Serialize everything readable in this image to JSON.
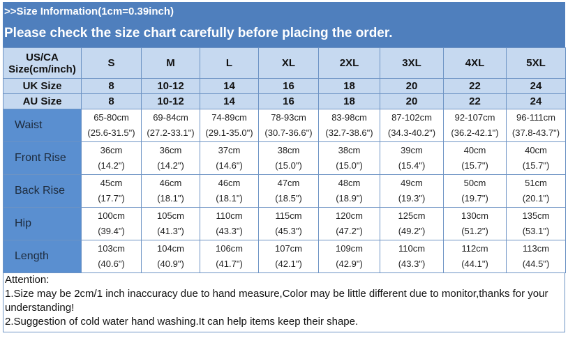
{
  "title": ">>Size Information(1cm=0.39inch)",
  "subtitle": "Please check the size chart carefully before placing the order.",
  "table": {
    "header_label": [
      "US/CA",
      "Size(cm/inch)"
    ],
    "sizes": [
      "S",
      "M",
      "L",
      "XL",
      "2XL",
      "3XL",
      "4XL",
      "5XL"
    ],
    "uk": {
      "label": "UK Size",
      "values": [
        "8",
        "10-12",
        "14",
        "16",
        "18",
        "20",
        "22",
        "24"
      ]
    },
    "au": {
      "label": "AU Size",
      "values": [
        "8",
        "10-12",
        "14",
        "16",
        "18",
        "20",
        "22",
        "24"
      ]
    },
    "rows": [
      {
        "label": "Waist",
        "cm": [
          "65-80cm",
          "69-84cm",
          "74-89cm",
          "78-93cm",
          "83-98cm",
          "87-102cm",
          "92-107cm",
          "96-111cm"
        ],
        "inch": [
          "(25.6-31.5\")",
          "(27.2-33.1\")",
          "(29.1-35.0\")",
          "(30.7-36.6\")",
          "(32.7-38.6\")",
          "(34.3-40.2\")",
          "(36.2-42.1\")",
          "(37.8-43.7\")"
        ]
      },
      {
        "label": "Front Rise",
        "cm": [
          "36cm",
          "36cm",
          "37cm",
          "38cm",
          "38cm",
          "39cm",
          "40cm",
          "40cm"
        ],
        "inch": [
          "(14.2\")",
          "(14.2\")",
          "(14.6\")",
          "(15.0\")",
          "(15.0\")",
          "(15.4\")",
          "(15.7\")",
          "(15.7\")"
        ]
      },
      {
        "label": "Back Rise",
        "cm": [
          "45cm",
          "46cm",
          "46cm",
          "47cm",
          "48cm",
          "49cm",
          "50cm",
          "51cm"
        ],
        "inch": [
          "(17.7\")",
          "(18.1\")",
          "(18.1\")",
          "(18.5\")",
          "(18.9\")",
          "(19.3\")",
          "(19.7\")",
          "(20.1\")"
        ]
      },
      {
        "label": "Hip",
        "cm": [
          "100cm",
          "105cm",
          "110cm",
          "115cm",
          "120cm",
          "125cm",
          "130cm",
          "135cm"
        ],
        "inch": [
          "(39.4\")",
          "(41.3\")",
          "(43.3\")",
          "(45.3\")",
          "(47.2\")",
          "(49.2\")",
          "(51.2\")",
          "(53.1\")"
        ]
      },
      {
        "label": "Length",
        "cm": [
          "103cm",
          "104cm",
          "106cm",
          "107cm",
          "109cm",
          "110cm",
          "112cm",
          "113cm"
        ],
        "inch": [
          "(40.6\")",
          "(40.9\")",
          "(41.7\")",
          "(42.1\")",
          "(42.9\")",
          "(43.3\")",
          "(44.1\")",
          "(44.5\")"
        ]
      }
    ]
  },
  "notes": [
    "Attention:",
    "1.Size may be 2cm/1 inch inaccuracy due to hand measure,Color may be little different due to monitor,thanks for your understanding!",
    "2.Suggestion of cold water hand washing.It can help items keep their shape."
  ]
}
